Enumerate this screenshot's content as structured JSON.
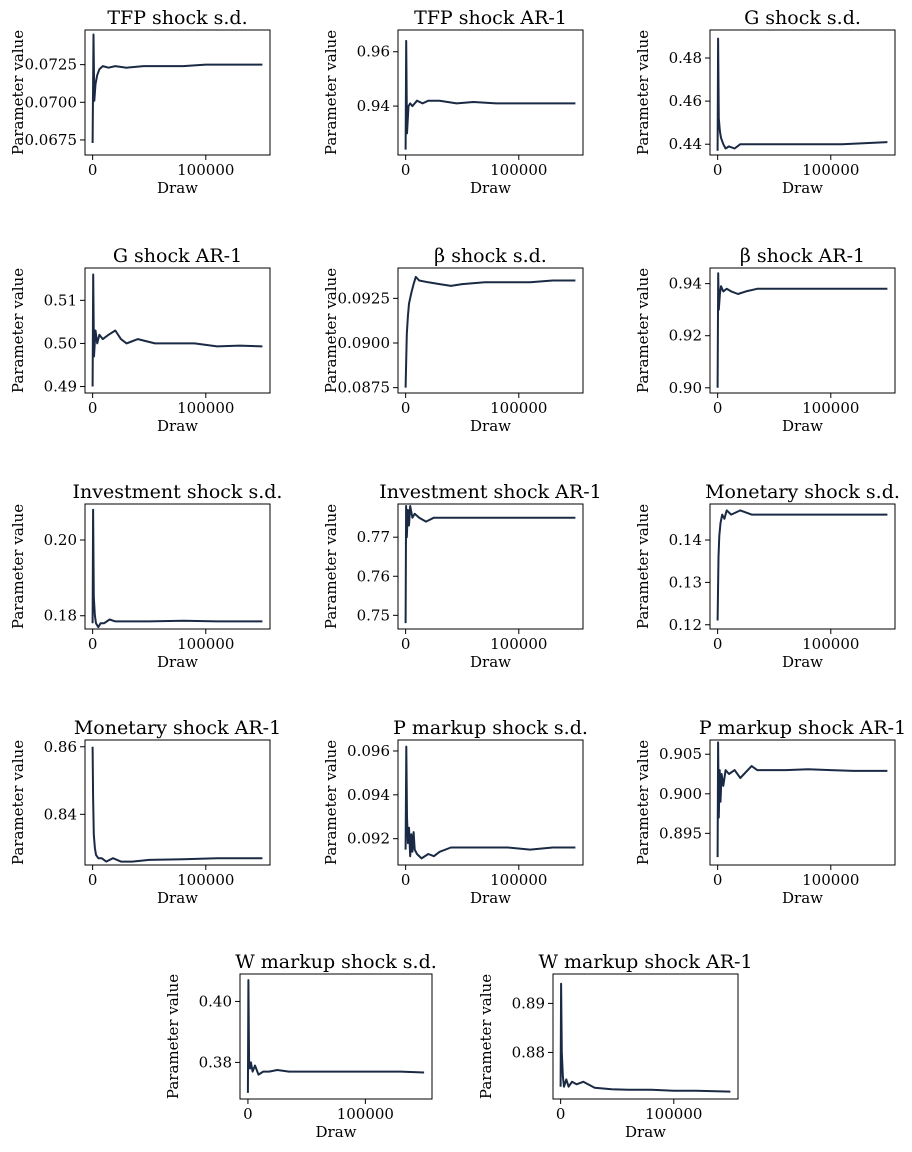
{
  "colors": {
    "series": "#1b2a44"
  },
  "chart_data": [
    {
      "type": "line",
      "title": "TFP shock s.d.",
      "xlabel": "Draw",
      "ylabel": "Parameter value",
      "x_range": [
        0,
        150000
      ],
      "ylim": [
        0.0665,
        0.0748
      ],
      "xticks": [
        0,
        100000
      ],
      "xtick_labels": [
        "0",
        "100000"
      ],
      "yticks": [
        0.0675,
        0.07,
        0.0725
      ],
      "ytick_labels": [
        "0.0675",
        "0.0700",
        "0.0725"
      ],
      "series": [
        {
          "x": [
            0,
            800,
            1500,
            2500,
            4000,
            6000,
            9000,
            14000,
            20000,
            30000,
            45000,
            60000,
            80000,
            100000,
            120000,
            135000,
            150000
          ],
          "values": [
            0.0673,
            0.0745,
            0.0701,
            0.0712,
            0.0718,
            0.0722,
            0.0724,
            0.0723,
            0.0724,
            0.0723,
            0.0724,
            0.0724,
            0.0724,
            0.0725,
            0.0725,
            0.0725,
            0.0725
          ]
        }
      ]
    },
    {
      "type": "line",
      "title": "TFP shock AR-1",
      "xlabel": "Draw",
      "ylabel": "Parameter value",
      "x_range": [
        0,
        150000
      ],
      "ylim": [
        0.922,
        0.968
      ],
      "xticks": [
        0,
        100000
      ],
      "xtick_labels": [
        "0",
        "100000"
      ],
      "yticks": [
        0.94,
        0.96
      ],
      "ytick_labels": [
        "0.94",
        "0.96"
      ],
      "series": [
        {
          "x": [
            0,
            500,
            1200,
            2500,
            4000,
            6000,
            10000,
            15000,
            20000,
            30000,
            45000,
            60000,
            80000,
            100000,
            130000,
            150000
          ],
          "values": [
            0.924,
            0.964,
            0.93,
            0.94,
            0.941,
            0.94,
            0.942,
            0.941,
            0.942,
            0.942,
            0.941,
            0.9415,
            0.941,
            0.941,
            0.941,
            0.941
          ]
        }
      ]
    },
    {
      "type": "line",
      "title": "G shock s.d.",
      "xlabel": "Draw",
      "ylabel": "Parameter value",
      "x_range": [
        0,
        150000
      ],
      "ylim": [
        0.435,
        0.493
      ],
      "xticks": [
        0,
        100000
      ],
      "xtick_labels": [
        "0",
        "100000"
      ],
      "yticks": [
        0.44,
        0.46,
        0.48
      ],
      "ytick_labels": [
        "0.44",
        "0.46",
        "0.48"
      ],
      "series": [
        {
          "x": [
            0,
            400,
            1000,
            2000,
            3000,
            5000,
            7000,
            10000,
            15000,
            20000,
            30000,
            50000,
            80000,
            110000,
            150000
          ],
          "values": [
            0.437,
            0.489,
            0.452,
            0.446,
            0.443,
            0.44,
            0.438,
            0.439,
            0.438,
            0.44,
            0.44,
            0.44,
            0.44,
            0.44,
            0.441
          ]
        }
      ]
    },
    {
      "type": "line",
      "title": "G shock AR-1",
      "xlabel": "Draw",
      "ylabel": "Parameter value",
      "x_range": [
        0,
        150000
      ],
      "ylim": [
        0.4885,
        0.5175
      ],
      "xticks": [
        0,
        100000
      ],
      "xtick_labels": [
        "0",
        "100000"
      ],
      "yticks": [
        0.49,
        0.5,
        0.51
      ],
      "ytick_labels": [
        "0.49",
        "0.50",
        "0.51"
      ],
      "series": [
        {
          "x": [
            0,
            500,
            1200,
            2500,
            4000,
            6000,
            9000,
            14000,
            20000,
            25000,
            30000,
            40000,
            55000,
            70000,
            90000,
            110000,
            130000,
            150000
          ],
          "values": [
            0.49,
            0.516,
            0.497,
            0.503,
            0.5,
            0.502,
            0.501,
            0.502,
            0.503,
            0.501,
            0.5,
            0.501,
            0.5,
            0.5,
            0.5,
            0.4993,
            0.4995,
            0.4993
          ]
        }
      ]
    },
    {
      "type": "line",
      "title": "β shock s.d.",
      "xlabel": "Draw",
      "ylabel": "Parameter value",
      "x_range": [
        0,
        150000
      ],
      "ylim": [
        0.0872,
        0.0942
      ],
      "xticks": [
        0,
        100000
      ],
      "xtick_labels": [
        "0",
        "100000"
      ],
      "yticks": [
        0.0875,
        0.09,
        0.0925
      ],
      "ytick_labels": [
        "0.0875",
        "0.0900",
        "0.0925"
      ],
      "series": [
        {
          "x": [
            0,
            1000,
            2000,
            3000,
            5000,
            7000,
            9000,
            12000,
            20000,
            30000,
            40000,
            50000,
            70000,
            90000,
            110000,
            130000,
            150000
          ],
          "values": [
            0.0875,
            0.0905,
            0.0915,
            0.0922,
            0.0928,
            0.0933,
            0.0937,
            0.0935,
            0.0934,
            0.0933,
            0.0932,
            0.0933,
            0.0934,
            0.0934,
            0.0934,
            0.0935,
            0.0935
          ]
        }
      ]
    },
    {
      "type": "line",
      "title": "β shock AR-1",
      "xlabel": "Draw",
      "ylabel": "Parameter value",
      "x_range": [
        0,
        150000
      ],
      "ylim": [
        0.898,
        0.946
      ],
      "xticks": [
        0,
        100000
      ],
      "xtick_labels": [
        "0",
        "100000"
      ],
      "yticks": [
        0.9,
        0.92,
        0.94
      ],
      "ytick_labels": [
        "0.90",
        "0.92",
        "0.94"
      ],
      "series": [
        {
          "x": [
            0,
            500,
            1000,
            2000,
            3000,
            5000,
            8000,
            12000,
            18000,
            25000,
            35000,
            50000,
            70000,
            90000,
            110000,
            130000,
            150000
          ],
          "values": [
            0.9,
            0.944,
            0.93,
            0.936,
            0.939,
            0.937,
            0.938,
            0.937,
            0.936,
            0.937,
            0.938,
            0.938,
            0.938,
            0.938,
            0.938,
            0.938,
            0.938
          ]
        }
      ]
    },
    {
      "type": "line",
      "title": "Investment shock s.d.",
      "xlabel": "Draw",
      "ylabel": "Parameter value",
      "x_range": [
        0,
        150000
      ],
      "ylim": [
        0.1765,
        0.2095
      ],
      "xticks": [
        0,
        100000
      ],
      "xtick_labels": [
        "0",
        "100000"
      ],
      "yticks": [
        0.18,
        0.2
      ],
      "ytick_labels": [
        "0.18",
        "0.20"
      ],
      "series": [
        {
          "x": [
            0,
            400,
            1000,
            2000,
            3000,
            5000,
            7000,
            10000,
            15000,
            20000,
            30000,
            50000,
            80000,
            110000,
            150000
          ],
          "values": [
            0.178,
            0.208,
            0.185,
            0.18,
            0.178,
            0.177,
            0.178,
            0.178,
            0.179,
            0.1785,
            0.1785,
            0.1785,
            0.1787,
            0.1785,
            0.1785
          ]
        }
      ]
    },
    {
      "type": "line",
      "title": "Investment shock AR-1",
      "xlabel": "Draw",
      "ylabel": "Parameter value",
      "x_range": [
        0,
        150000
      ],
      "ylim": [
        0.7465,
        0.7785
      ],
      "xticks": [
        0,
        100000
      ],
      "xtick_labels": [
        "0",
        "100000"
      ],
      "yticks": [
        0.75,
        0.76,
        0.77
      ],
      "ytick_labels": [
        "0.75",
        "0.76",
        "0.77"
      ],
      "series": [
        {
          "x": [
            0,
            400,
            1000,
            2000,
            3000,
            4000,
            6000,
            8000,
            12000,
            18000,
            25000,
            35000,
            50000,
            70000,
            90000,
            110000,
            130000,
            150000
          ],
          "values": [
            0.748,
            0.778,
            0.77,
            0.777,
            0.773,
            0.778,
            0.775,
            0.776,
            0.775,
            0.774,
            0.775,
            0.775,
            0.775,
            0.775,
            0.775,
            0.775,
            0.775,
            0.775
          ]
        }
      ]
    },
    {
      "type": "line",
      "title": "Monetary shock s.d.",
      "xlabel": "Draw",
      "ylabel": "Parameter value",
      "x_range": [
        0,
        150000
      ],
      "ylim": [
        0.119,
        0.1485
      ],
      "xticks": [
        0,
        100000
      ],
      "xtick_labels": [
        "0",
        "100000"
      ],
      "yticks": [
        0.12,
        0.13,
        0.14
      ],
      "ytick_labels": [
        "0.12",
        "0.13",
        "0.14"
      ],
      "series": [
        {
          "x": [
            0,
            800,
            1500,
            2500,
            4000,
            6000,
            8000,
            12000,
            20000,
            30000,
            45000,
            60000,
            80000,
            100000,
            120000,
            135000,
            150000
          ],
          "values": [
            0.121,
            0.136,
            0.141,
            0.144,
            0.146,
            0.145,
            0.147,
            0.146,
            0.147,
            0.146,
            0.146,
            0.146,
            0.146,
            0.146,
            0.146,
            0.146,
            0.146
          ]
        }
      ]
    },
    {
      "type": "line",
      "title": "Monetary shock AR-1",
      "xlabel": "Draw",
      "ylabel": "Parameter value",
      "x_range": [
        0,
        150000
      ],
      "ylim": [
        0.825,
        0.862
      ],
      "xticks": [
        0,
        100000
      ],
      "xtick_labels": [
        "0",
        "100000"
      ],
      "yticks": [
        0.84,
        0.86
      ],
      "ytick_labels": [
        "0.84",
        "0.86"
      ],
      "series": [
        {
          "x": [
            0,
            400,
            1000,
            2000,
            3000,
            5000,
            8000,
            12000,
            18000,
            25000,
            35000,
            50000,
            80000,
            110000,
            150000
          ],
          "values": [
            0.86,
            0.845,
            0.834,
            0.83,
            0.828,
            0.827,
            0.827,
            0.826,
            0.827,
            0.826,
            0.826,
            0.8265,
            0.8267,
            0.827,
            0.827
          ]
        }
      ]
    },
    {
      "type": "line",
      "title": "P markup shock s.d.",
      "xlabel": "Draw",
      "ylabel": "Parameter value",
      "x_range": [
        0,
        150000
      ],
      "ylim": [
        0.0908,
        0.0965
      ],
      "xticks": [
        0,
        100000
      ],
      "xtick_labels": [
        "0",
        "100000"
      ],
      "yticks": [
        0.092,
        0.094,
        0.096
      ],
      "ytick_labels": [
        "0.092",
        "0.094",
        "0.096"
      ],
      "series": [
        {
          "x": [
            0,
            600,
            1200,
            2000,
            3000,
            4000,
            5000,
            6000,
            7000,
            8000,
            10000,
            14000,
            20000,
            25000,
            30000,
            40000,
            50000,
            70000,
            90000,
            110000,
            130000,
            150000
          ],
          "values": [
            0.0915,
            0.0962,
            0.093,
            0.0918,
            0.0925,
            0.0912,
            0.0922,
            0.0914,
            0.0923,
            0.0915,
            0.0913,
            0.0911,
            0.0913,
            0.0912,
            0.0914,
            0.0916,
            0.0916,
            0.0916,
            0.0916,
            0.0915,
            0.0916,
            0.0916
          ]
        }
      ]
    },
    {
      "type": "line",
      "title": "P markup shock AR-1",
      "xlabel": "Draw",
      "ylabel": "Parameter value",
      "x_range": [
        0,
        150000
      ],
      "ylim": [
        0.891,
        0.9068
      ],
      "xticks": [
        0,
        100000
      ],
      "xtick_labels": [
        "0",
        "100000"
      ],
      "yticks": [
        0.895,
        0.9,
        0.905
      ],
      "ytick_labels": [
        "0.895",
        "0.900",
        "0.905"
      ],
      "series": [
        {
          "x": [
            0,
            400,
            1000,
            1800,
            2500,
            3500,
            5000,
            7000,
            10000,
            15000,
            20000,
            30000,
            35000,
            45000,
            60000,
            80000,
            100000,
            120000,
            150000
          ],
          "values": [
            0.892,
            0.9065,
            0.897,
            0.903,
            0.899,
            0.9025,
            0.901,
            0.903,
            0.9025,
            0.903,
            0.902,
            0.9035,
            0.903,
            0.903,
            0.903,
            0.9031,
            0.903,
            0.9029,
            0.9029
          ]
        }
      ]
    },
    {
      "type": "line",
      "title": "W markup shock s.d.",
      "xlabel": "Draw",
      "ylabel": "Parameter value",
      "x_range": [
        0,
        150000
      ],
      "ylim": [
        0.368,
        0.409
      ],
      "xticks": [
        0,
        100000
      ],
      "xtick_labels": [
        "0",
        "100000"
      ],
      "yticks": [
        0.38,
        0.4
      ],
      "ytick_labels": [
        "0.38",
        "0.40"
      ],
      "series": [
        {
          "x": [
            0,
            400,
            1000,
            1800,
            2500,
            4000,
            6000,
            9000,
            13000,
            18000,
            25000,
            35000,
            50000,
            70000,
            90000,
            110000,
            130000,
            150000
          ],
          "values": [
            0.37,
            0.407,
            0.38,
            0.378,
            0.38,
            0.377,
            0.379,
            0.376,
            0.377,
            0.377,
            0.3775,
            0.377,
            0.377,
            0.377,
            0.377,
            0.377,
            0.377,
            0.3767
          ]
        }
      ]
    },
    {
      "type": "line",
      "title": "W markup shock AR-1",
      "xlabel": "Draw",
      "ylabel": "Parameter value",
      "x_range": [
        0,
        150000
      ],
      "ylim": [
        0.8705,
        0.896
      ],
      "xticks": [
        0,
        100000
      ],
      "xtick_labels": [
        "0",
        "100000"
      ],
      "yticks": [
        0.88,
        0.89
      ],
      "ytick_labels": [
        "0.88",
        "0.89"
      ],
      "series": [
        {
          "x": [
            0,
            400,
            1000,
            2000,
            3000,
            5000,
            7000,
            10000,
            14000,
            20000,
            30000,
            45000,
            60000,
            80000,
            100000,
            120000,
            150000
          ],
          "values": [
            0.873,
            0.894,
            0.88,
            0.875,
            0.873,
            0.8745,
            0.873,
            0.874,
            0.8735,
            0.874,
            0.8728,
            0.8725,
            0.8724,
            0.8724,
            0.8722,
            0.8722,
            0.872
          ]
        }
      ]
    }
  ]
}
